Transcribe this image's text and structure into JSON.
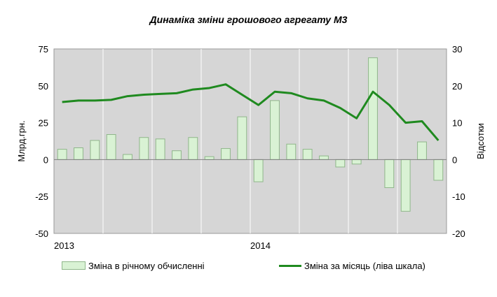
{
  "chart_data": {
    "type": "bar+line",
    "title": "Динаміка зміни грошового  агрегату М3",
    "left_axis": {
      "label": "Млрд.грн.",
      "ylim": [
        -50,
        75
      ],
      "ticks": [
        "75",
        "50",
        "25",
        "0",
        "-25",
        "-50"
      ]
    },
    "right_axis": {
      "label": "Відсотки",
      "ylim": [
        -20,
        30
      ],
      "ticks": [
        "30",
        "20",
        "10",
        "0",
        "-10",
        "-20"
      ]
    },
    "x_labels": [
      {
        "label": "2013",
        "index": 0
      },
      {
        "label": "2014",
        "index": 12
      }
    ],
    "n_periods": 24,
    "grid": "vertical",
    "legend_position": "bottom",
    "series": [
      {
        "name": "Зміна в річному обчисленні",
        "type": "bar",
        "color": "#d9f2d4",
        "values": [
          7,
          8,
          13,
          17,
          3.5,
          15,
          14,
          6,
          15,
          2,
          7.5,
          29,
          -15,
          40,
          10.5,
          7,
          2.5,
          -5,
          -3,
          69,
          -19,
          -35,
          12,
          -14
        ]
      },
      {
        "name": "Зміна за місяць (ліва шкала)",
        "type": "line",
        "color": "#1f8a1f",
        "values": [
          39,
          40,
          40,
          40.5,
          43,
          44,
          44.5,
          45,
          47.5,
          48.5,
          51,
          44,
          37,
          46,
          45,
          41.5,
          40,
          35,
          28,
          46,
          37,
          25,
          26,
          13
        ]
      }
    ]
  }
}
